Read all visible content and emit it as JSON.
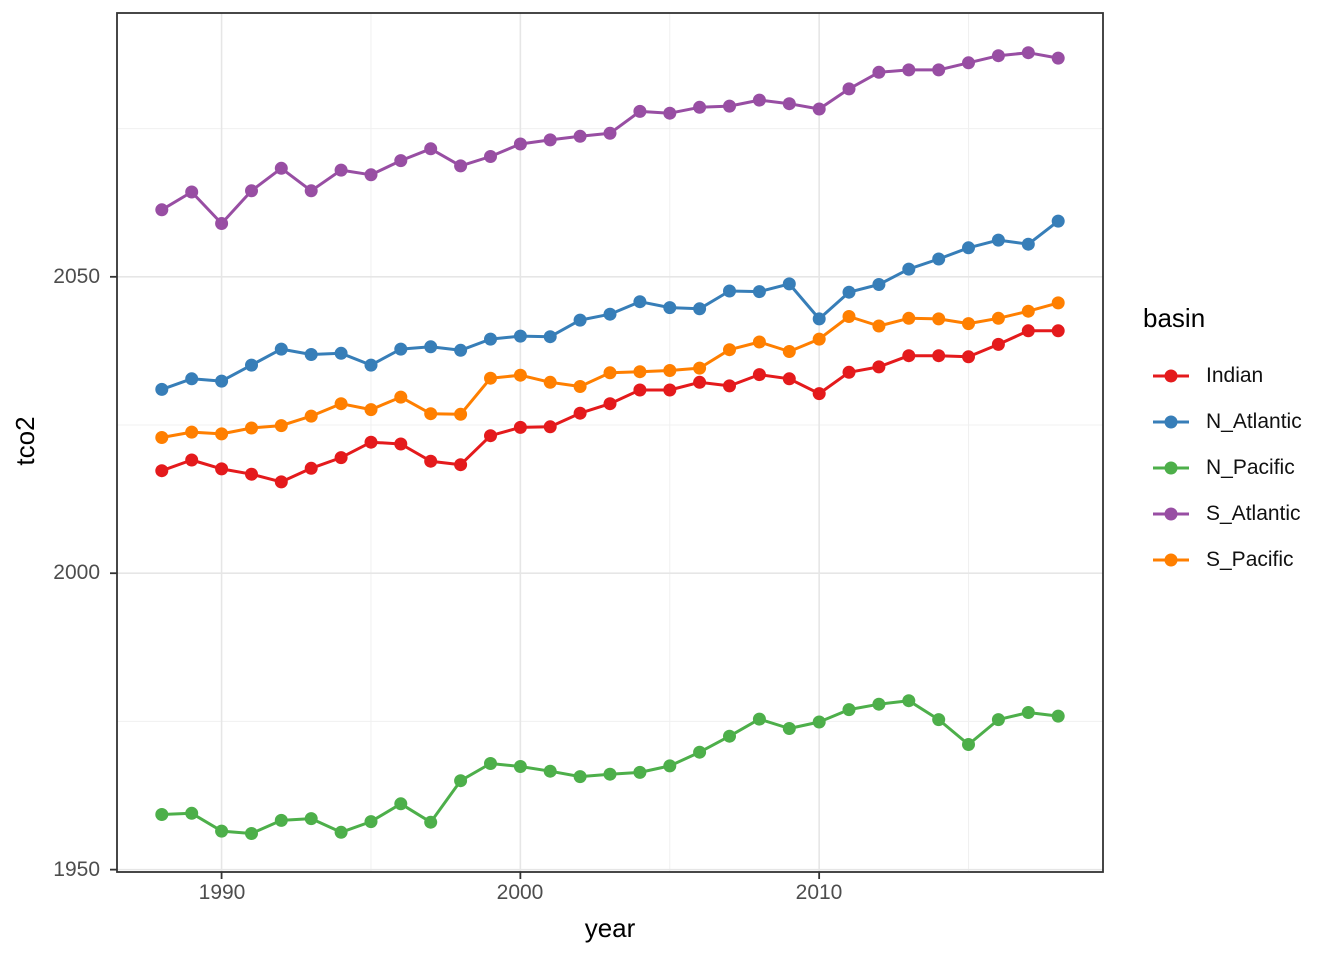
{
  "figure": {
    "background_color": "#ffffff",
    "panel_border_color": "#333333",
    "grid_major_color": "#e6e6e6",
    "grid_minor_color": "#f0f0f0",
    "tick_color": "#333333",
    "tick_label_color": "#4d4d4d"
  },
  "legend": {
    "title": "basin",
    "position": "right"
  },
  "chart_data": {
    "type": "line",
    "title": "",
    "xlabel": "year",
    "ylabel": "tco2",
    "xlim": [
      1986.5,
      2019.5
    ],
    "ylim": [
      1949.6,
      2094.5
    ],
    "x_major_ticks": [
      1990,
      2000,
      2010
    ],
    "x_minor_ticks": [
      1995,
      2005,
      2015
    ],
    "y_major_ticks": [
      1950,
      2000,
      2050
    ],
    "y_minor_ticks": [
      1975,
      2025,
      2075
    ],
    "grid": true,
    "legend_position": "right",
    "marker": "point",
    "x": [
      1988,
      1989,
      1990,
      1991,
      1992,
      1993,
      1994,
      1995,
      1996,
      1997,
      1998,
      1999,
      2000,
      2001,
      2002,
      2003,
      2004,
      2005,
      2006,
      2007,
      2008,
      2009,
      2010,
      2011,
      2012,
      2013,
      2014,
      2015,
      2016,
      2017,
      2018
    ],
    "series": [
      {
        "name": "Indian",
        "color": "#E41A1C",
        "values": [
          2017.3,
          2019.1,
          2017.6,
          2016.7,
          2015.4,
          2017.7,
          2019.5,
          2022.1,
          2021.8,
          2018.9,
          2018.3,
          2023.2,
          2024.6,
          2024.7,
          2027.0,
          2028.6,
          2030.9,
          2030.9,
          2032.2,
          2031.6,
          2033.5,
          2032.8,
          2030.3,
          2033.9,
          2034.8,
          2036.7,
          2036.7,
          2036.5,
          2038.6,
          2040.9,
          2040.9
        ]
      },
      {
        "name": "N_Atlantic",
        "color": "#377EB8",
        "values": [
          2031.0,
          2032.8,
          2032.4,
          2035.1,
          2037.8,
          2036.9,
          2037.1,
          2035.1,
          2037.8,
          2038.2,
          2037.6,
          2039.5,
          2040.0,
          2039.9,
          2042.7,
          2043.7,
          2045.8,
          2044.8,
          2044.6,
          2047.6,
          2047.5,
          2048.8,
          2042.9,
          2047.4,
          2048.7,
          2051.3,
          2053.0,
          2054.9,
          2056.2,
          2055.5,
          2059.4
        ]
      },
      {
        "name": "N_Pacific",
        "color": "#4DAF4A",
        "values": [
          1959.3,
          1959.5,
          1956.5,
          1956.1,
          1958.3,
          1958.6,
          1956.3,
          1958.1,
          1961.1,
          1958.0,
          1965.0,
          1967.9,
          1967.4,
          1966.6,
          1965.7,
          1966.1,
          1966.4,
          1967.5,
          1969.8,
          1972.5,
          1975.4,
          1973.8,
          1974.9,
          1977.0,
          1977.9,
          1978.5,
          1975.3,
          1971.1,
          1975.3,
          1976.5,
          1975.9
        ]
      },
      {
        "name": "S_Atlantic",
        "color": "#984EA3",
        "values": [
          2061.3,
          2064.3,
          2059.0,
          2064.5,
          2068.3,
          2064.5,
          2068.0,
          2067.2,
          2069.6,
          2071.6,
          2068.7,
          2070.3,
          2072.4,
          2073.1,
          2073.7,
          2074.2,
          2077.9,
          2077.6,
          2078.6,
          2078.8,
          2079.8,
          2079.2,
          2078.3,
          2081.7,
          2084.5,
          2084.9,
          2084.9,
          2086.1,
          2087.3,
          2087.8,
          2086.9
        ]
      },
      {
        "name": "S_Pacific",
        "color": "#FF7F00",
        "values": [
          2022.9,
          2023.8,
          2023.5,
          2024.5,
          2024.9,
          2026.5,
          2028.6,
          2027.6,
          2029.7,
          2026.9,
          2026.8,
          2032.9,
          2033.4,
          2032.2,
          2031.5,
          2033.8,
          2034.0,
          2034.2,
          2034.6,
          2037.7,
          2039.0,
          2037.4,
          2039.5,
          2043.3,
          2041.7,
          2043.0,
          2042.9,
          2042.1,
          2043.0,
          2044.2,
          2045.6
        ]
      }
    ]
  }
}
